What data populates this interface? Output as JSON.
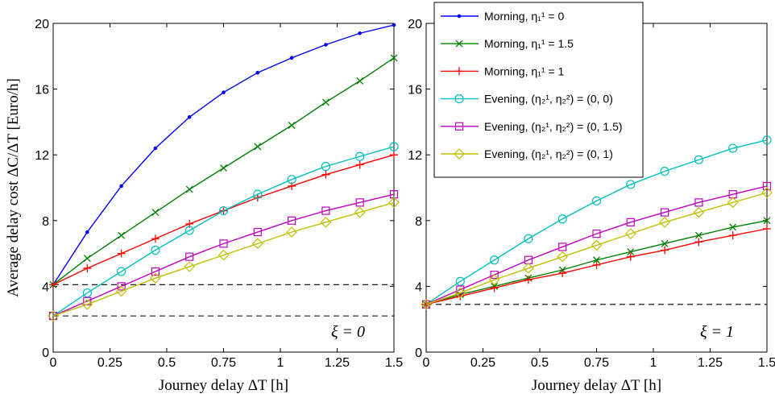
{
  "chart_data": [
    {
      "type": "line",
      "panel_annotation": "ξ = 0",
      "xlabel": "Journey delay ΔT [h]",
      "ylabel": "Average delay cost ΔC/ΔT [Euro/h]",
      "xlim": [
        0,
        1.5
      ],
      "ylim": [
        0,
        20
      ],
      "x_ticks": [
        "0",
        "0.25",
        "0.5",
        "0.75",
        "1",
        "1.25",
        "1.5"
      ],
      "y_ticks": [
        "0",
        "4",
        "8",
        "12",
        "16",
        "20"
      ],
      "grid": false,
      "x": [
        0,
        0.15,
        0.3,
        0.45,
        0.6,
        0.75,
        0.9,
        1.05,
        1.2,
        1.35,
        1.5
      ],
      "reference_lines": [
        4.1,
        2.2
      ],
      "series": [
        {
          "name": "Morning, η₁¹ = 0",
          "color": "#0000ff",
          "marker": "dot",
          "values": [
            4.1,
            7.3,
            10.1,
            12.4,
            14.3,
            15.8,
            17.0,
            17.9,
            18.7,
            19.4,
            19.9
          ]
        },
        {
          "name": "Morning, η₁¹ = 1.5",
          "color": "#008000",
          "marker": "x",
          "values": [
            4.1,
            5.7,
            7.1,
            8.5,
            9.9,
            11.2,
            12.5,
            13.8,
            15.2,
            16.5,
            17.9
          ]
        },
        {
          "name": "Morning, η₁¹ = 1",
          "color": "#ff0000",
          "marker": "plus",
          "values": [
            4.1,
            5.1,
            6.0,
            6.9,
            7.8,
            8.6,
            9.4,
            10.1,
            10.8,
            11.4,
            12.0
          ]
        },
        {
          "name": "Evening, (η₂¹, η₂²) = (0, 0)",
          "color": "#00bfbf",
          "marker": "circle",
          "values": [
            2.2,
            3.6,
            4.9,
            6.2,
            7.4,
            8.6,
            9.6,
            10.5,
            11.3,
            11.9,
            12.5
          ]
        },
        {
          "name": "Evening, (η₂¹, η₂²) = (0, 1.5)",
          "color": "#bf00bf",
          "marker": "square",
          "values": [
            2.2,
            3.1,
            4.0,
            4.9,
            5.8,
            6.6,
            7.3,
            8.0,
            8.6,
            9.1,
            9.6
          ]
        },
        {
          "name": "Evening, (η₂¹, η₂²) = (0, 1)",
          "color": "#bfbf00",
          "marker": "diamond",
          "values": [
            2.2,
            2.9,
            3.7,
            4.5,
            5.2,
            5.9,
            6.6,
            7.3,
            7.9,
            8.5,
            9.1
          ]
        }
      ]
    },
    {
      "type": "line",
      "panel_annotation": "ξ = 1",
      "xlabel": "Journey delay ΔT [h]",
      "xlim": [
        0,
        1.5
      ],
      "ylim": [
        0,
        20
      ],
      "x_ticks": [
        "0",
        "0.25",
        "0.5",
        "0.75",
        "1",
        "1.25",
        "1.5"
      ],
      "y_ticks": [
        "0",
        "4",
        "8",
        "12",
        "16",
        "20"
      ],
      "grid": false,
      "x": [
        0,
        0.15,
        0.3,
        0.45,
        0.6,
        0.75,
        0.9,
        1.05,
        1.2,
        1.35,
        1.5
      ],
      "reference_lines": [
        2.9
      ],
      "legend_position": "top-left",
      "series": [
        {
          "name": "Morning, η₁¹ = 1.5",
          "color": "#008000",
          "marker": "x",
          "values": [
            2.9,
            3.5,
            4.0,
            4.5,
            5.0,
            5.6,
            6.1,
            6.6,
            7.1,
            7.6,
            8.0
          ]
        },
        {
          "name": "Morning, η₁¹ = 1",
          "color": "#ff0000",
          "marker": "plus",
          "values": [
            2.9,
            3.4,
            3.9,
            4.4,
            4.8,
            5.3,
            5.8,
            6.2,
            6.7,
            7.1,
            7.5
          ]
        },
        {
          "name": "Evening, (η₂¹, η₂²) = (0, 0)",
          "color": "#00bfbf",
          "marker": "circle",
          "values": [
            2.9,
            4.3,
            5.6,
            6.9,
            8.1,
            9.2,
            10.2,
            11.0,
            11.7,
            12.4,
            12.9
          ]
        },
        {
          "name": "Evening, (η₂¹, η₂²) = (0, 1.5)",
          "color": "#bf00bf",
          "marker": "square",
          "values": [
            2.9,
            3.8,
            4.7,
            5.6,
            6.4,
            7.2,
            7.9,
            8.5,
            9.1,
            9.6,
            10.1
          ]
        },
        {
          "name": "Evening, (η₂¹, η₂²) = (0, 1)",
          "color": "#bfbf00",
          "marker": "diamond",
          "values": [
            2.9,
            3.6,
            4.4,
            5.1,
            5.8,
            6.5,
            7.2,
            7.9,
            8.5,
            9.1,
            9.7
          ]
        }
      ]
    }
  ],
  "legend": [
    {
      "text": "Morning, η₁¹ = 0",
      "color": "#0000ff",
      "marker": "dot"
    },
    {
      "text": "Morning, η₁¹ = 1.5",
      "color": "#008000",
      "marker": "x"
    },
    {
      "text": "Morning, η₁¹ = 1",
      "color": "#ff0000",
      "marker": "plus"
    },
    {
      "text": "Evening, (η₂¹, η₂²) = (0, 0)",
      "color": "#00bfbf",
      "marker": "circle"
    },
    {
      "text": "Evening, (η₂¹, η₂²) = (0, 1.5)",
      "color": "#bf00bf",
      "marker": "square"
    },
    {
      "text": "Evening, (η₂¹, η₂²) = (0, 1)",
      "color": "#bfbf00",
      "marker": "diamond"
    }
  ]
}
